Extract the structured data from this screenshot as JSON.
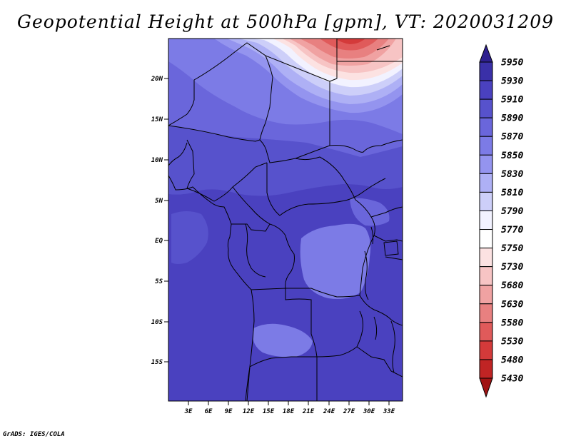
{
  "title": "Geopotential Height at 500hPa [gpm], VT: 2020031209",
  "footer": "GrADS: IGES/COLA",
  "map": {
    "lat_labels": [
      "20N",
      "15N",
      "10N",
      "5N",
      "EQ",
      "5S",
      "10S",
      "15S"
    ],
    "lon_labels": [
      "3E",
      "6E",
      "9E",
      "12E",
      "15E",
      "18E",
      "21E",
      "24E",
      "27E",
      "30E",
      "33E"
    ]
  },
  "colorbar": {
    "levels": [
      "5950",
      "5930",
      "5910",
      "5890",
      "5870",
      "5850",
      "5830",
      "5810",
      "5790",
      "5770",
      "5750",
      "5730",
      "5680",
      "5630",
      "5580",
      "5530",
      "5480",
      "5430"
    ],
    "colors": [
      "#2e1f8f",
      "#3a30a8",
      "#4a41bf",
      "#5752cc",
      "#6a66db",
      "#7c7be6",
      "#9494ef",
      "#aeb0f5",
      "#cdcff9",
      "#f2f2ff",
      "#ffffff",
      "#fce2e2",
      "#f7c4c4",
      "#f0a2a2",
      "#e88080",
      "#e05a5a",
      "#d43a3a",
      "#c02424",
      "#a01414"
    ]
  }
}
